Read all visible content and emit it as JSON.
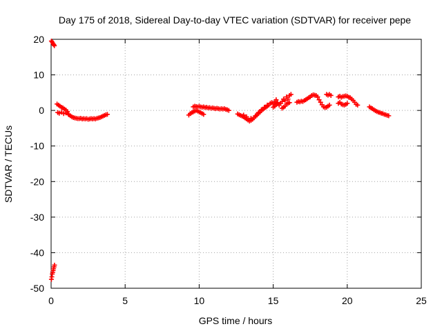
{
  "chart_data": {
    "type": "scatter",
    "title": "Day 175 of 2018, Sidereal Day-to-day VTEC variation (SDTVAR) for receiver pepe",
    "xlabel": "GPS time / hours",
    "ylabel": "SDTVAR / TECUs",
    "xlim": [
      0,
      25
    ],
    "ylim": [
      -50,
      20
    ],
    "xticks": [
      0,
      5,
      10,
      15,
      20,
      25
    ],
    "yticks": [
      -50,
      -40,
      -30,
      -20,
      -10,
      0,
      10,
      20
    ],
    "grid": true,
    "marker": "plus",
    "color": "#ff0000",
    "series": [
      {
        "name": "SDTVAR",
        "points": [
          [
            0.02,
            19.5
          ],
          [
            0.08,
            19.2
          ],
          [
            0.13,
            18.8
          ],
          [
            0.18,
            18.5
          ],
          [
            0.22,
            18.2
          ],
          [
            0.02,
            -47.5
          ],
          [
            0.05,
            -46.8
          ],
          [
            0.08,
            -46.0
          ],
          [
            0.11,
            -45.5
          ],
          [
            0.14,
            -45.0
          ],
          [
            0.17,
            -44.5
          ],
          [
            0.2,
            -44.0
          ],
          [
            0.23,
            -43.5
          ],
          [
            0.4,
            1.8
          ],
          [
            0.5,
            1.5
          ],
          [
            0.6,
            1.2
          ],
          [
            0.7,
            0.9
          ],
          [
            0.8,
            0.7
          ],
          [
            0.9,
            0.4
          ],
          [
            1.0,
            0.1
          ],
          [
            1.1,
            -0.3
          ],
          [
            0.45,
            -0.6
          ],
          [
            0.55,
            -0.8
          ],
          [
            0.7,
            -0.5
          ],
          [
            0.85,
            -0.9
          ],
          [
            1.0,
            -0.7
          ],
          [
            1.15,
            -1.0
          ],
          [
            1.2,
            -1.2
          ],
          [
            1.3,
            -1.5
          ],
          [
            1.4,
            -1.8
          ],
          [
            1.5,
            -2.0
          ],
          [
            1.6,
            -2.1
          ],
          [
            1.7,
            -2.2
          ],
          [
            1.8,
            -2.3
          ],
          [
            1.9,
            -2.3
          ],
          [
            2.0,
            -2.2
          ],
          [
            2.1,
            -2.4
          ],
          [
            2.2,
            -2.3
          ],
          [
            2.3,
            -2.4
          ],
          [
            2.4,
            -2.3
          ],
          [
            2.5,
            -2.5
          ],
          [
            2.6,
            -2.4
          ],
          [
            2.7,
            -2.3
          ],
          [
            2.8,
            -2.4
          ],
          [
            2.9,
            -2.3
          ],
          [
            3.0,
            -2.4
          ],
          [
            3.1,
            -2.2
          ],
          [
            3.2,
            -2.1
          ],
          [
            3.3,
            -2.0
          ],
          [
            3.4,
            -1.8
          ],
          [
            3.5,
            -1.6
          ],
          [
            3.6,
            -1.4
          ],
          [
            3.7,
            -1.2
          ],
          [
            3.8,
            -1.1
          ],
          [
            9.3,
            -1.3
          ],
          [
            9.4,
            -0.9
          ],
          [
            9.5,
            -0.6
          ],
          [
            9.6,
            -0.4
          ],
          [
            9.7,
            -0.2
          ],
          [
            9.8,
            0.0
          ],
          [
            9.9,
            -0.2
          ],
          [
            10.0,
            -0.4
          ],
          [
            10.1,
            -0.6
          ],
          [
            10.2,
            -0.9
          ],
          [
            10.3,
            -1.1
          ],
          [
            9.6,
            1.0
          ],
          [
            9.7,
            1.2
          ],
          [
            9.8,
            1.1
          ],
          [
            9.9,
            1.0
          ],
          [
            10.0,
            1.2
          ],
          [
            10.1,
            1.0
          ],
          [
            10.2,
            0.9
          ],
          [
            10.3,
            1.0
          ],
          [
            10.4,
            0.8
          ],
          [
            10.5,
            0.9
          ],
          [
            10.6,
            0.7
          ],
          [
            10.7,
            0.8
          ],
          [
            10.8,
            0.6
          ],
          [
            10.9,
            0.7
          ],
          [
            11.0,
            0.6
          ],
          [
            11.1,
            0.5
          ],
          [
            11.2,
            0.6
          ],
          [
            11.3,
            0.5
          ],
          [
            11.4,
            0.4
          ],
          [
            11.5,
            0.5
          ],
          [
            11.6,
            0.4
          ],
          [
            11.7,
            0.5
          ],
          [
            11.8,
            0.3
          ],
          [
            11.9,
            0.2
          ],
          [
            12.0,
            0.0
          ],
          [
            12.6,
            -1.0
          ],
          [
            12.7,
            -1.2
          ],
          [
            12.8,
            -1.4
          ],
          [
            12.9,
            -1.6
          ],
          [
            13.0,
            -1.8
          ],
          [
            13.1,
            -2.1
          ],
          [
            13.2,
            -2.4
          ],
          [
            13.3,
            -2.7
          ],
          [
            13.4,
            -3.0
          ],
          [
            13.5,
            -2.8
          ],
          [
            13.6,
            -2.5
          ],
          [
            13.7,
            -2.1
          ],
          [
            13.8,
            -1.7
          ],
          [
            13.9,
            -1.3
          ],
          [
            14.0,
            -0.9
          ],
          [
            14.1,
            -0.5
          ],
          [
            14.2,
            -0.1
          ],
          [
            14.3,
            0.3
          ],
          [
            14.4,
            0.6
          ],
          [
            14.5,
            0.9
          ],
          [
            14.6,
            1.2
          ],
          [
            13.0,
            -1.3
          ],
          [
            13.2,
            -1.8
          ],
          [
            13.5,
            -2.2
          ],
          [
            13.8,
            -1.5
          ],
          [
            14.0,
            -0.6
          ],
          [
            14.2,
            0.2
          ],
          [
            14.4,
            0.9
          ],
          [
            14.6,
            1.5
          ],
          [
            14.7,
            1.5
          ],
          [
            14.8,
            2.0
          ],
          [
            14.9,
            2.2
          ],
          [
            15.0,
            1.8
          ],
          [
            15.1,
            2.5
          ],
          [
            15.2,
            3.0
          ],
          [
            15.3,
            2.2
          ],
          [
            15.0,
            0.9
          ],
          [
            15.1,
            1.2
          ],
          [
            15.2,
            1.6
          ],
          [
            15.3,
            1.9
          ],
          [
            15.4,
            1.5
          ],
          [
            15.5,
            2.0
          ],
          [
            15.6,
            2.5
          ],
          [
            15.7,
            3.2
          ],
          [
            15.8,
            2.8
          ],
          [
            15.9,
            3.8
          ],
          [
            16.0,
            3.2
          ],
          [
            16.1,
            4.2
          ],
          [
            16.2,
            4.5
          ],
          [
            15.6,
            0.6
          ],
          [
            15.7,
            0.9
          ],
          [
            15.8,
            1.2
          ],
          [
            15.9,
            1.8
          ],
          [
            16.0,
            2.0
          ],
          [
            16.1,
            2.2
          ],
          [
            16.6,
            2.3
          ],
          [
            16.7,
            2.5
          ],
          [
            16.8,
            2.4
          ],
          [
            16.9,
            2.6
          ],
          [
            17.0,
            2.5
          ],
          [
            17.1,
            2.8
          ],
          [
            17.2,
            3.0
          ],
          [
            17.3,
            3.3
          ],
          [
            17.4,
            3.6
          ],
          [
            17.5,
            3.8
          ],
          [
            17.6,
            4.2
          ],
          [
            17.7,
            4.4
          ],
          [
            17.8,
            4.3
          ],
          [
            17.9,
            4.2
          ],
          [
            18.0,
            3.8
          ],
          [
            18.1,
            3.0
          ],
          [
            18.2,
            2.3
          ],
          [
            18.3,
            1.6
          ],
          [
            18.4,
            1.0
          ],
          [
            18.5,
            0.8
          ],
          [
            18.6,
            0.9
          ],
          [
            18.7,
            1.2
          ],
          [
            18.8,
            1.5
          ],
          [
            18.6,
            4.5
          ],
          [
            18.7,
            4.3
          ],
          [
            18.8,
            4.5
          ],
          [
            18.9,
            4.2
          ],
          [
            19.4,
            2.0
          ],
          [
            19.5,
            2.3
          ],
          [
            19.6,
            1.8
          ],
          [
            19.7,
            1.6
          ],
          [
            19.8,
            1.5
          ],
          [
            19.9,
            1.7
          ],
          [
            20.0,
            2.0
          ],
          [
            19.4,
            3.8
          ],
          [
            19.5,
            4.0
          ],
          [
            19.6,
            3.7
          ],
          [
            19.7,
            3.9
          ],
          [
            19.8,
            4.0
          ],
          [
            19.9,
            4.1
          ],
          [
            20.0,
            4.0
          ],
          [
            20.1,
            3.7
          ],
          [
            20.2,
            3.6
          ],
          [
            20.3,
            3.2
          ],
          [
            20.4,
            2.8
          ],
          [
            20.5,
            2.3
          ],
          [
            20.6,
            1.7
          ],
          [
            20.7,
            1.5
          ],
          [
            21.5,
            1.0
          ],
          [
            21.6,
            0.7
          ],
          [
            21.7,
            0.5
          ],
          [
            21.8,
            0.2
          ],
          [
            21.9,
            -0.1
          ],
          [
            22.0,
            -0.3
          ],
          [
            22.1,
            -0.5
          ],
          [
            22.2,
            -0.6
          ],
          [
            22.3,
            -0.8
          ],
          [
            22.4,
            -0.9
          ],
          [
            22.5,
            -1.1
          ],
          [
            22.6,
            -1.2
          ],
          [
            22.7,
            -1.4
          ],
          [
            22.8,
            -1.5
          ]
        ]
      }
    ]
  }
}
